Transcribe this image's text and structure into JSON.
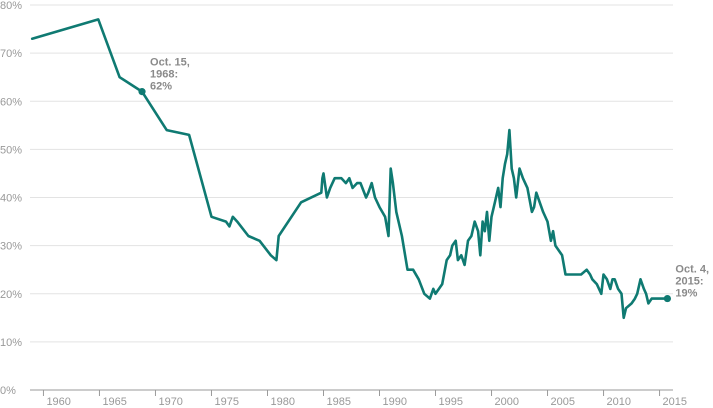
{
  "chart_data": {
    "type": "line",
    "title": "",
    "xlabel": "",
    "ylabel": "",
    "xlim": [
      1958.8,
      2016.2
    ],
    "ylim": [
      0,
      80
    ],
    "grid": true,
    "x_ticks": [
      1960,
      1965,
      1970,
      1975,
      1980,
      1985,
      1990,
      1995,
      2000,
      2005,
      2010,
      2015
    ],
    "x_tick_labels": [
      "1960",
      "1965",
      "1970",
      "1975",
      "1980",
      "1985",
      "1990",
      "1995",
      "2000",
      "2005",
      "2010",
      "2015"
    ],
    "y_ticks": [
      0,
      10,
      20,
      30,
      40,
      50,
      60,
      70,
      80
    ],
    "y_tick_labels": [
      "0%",
      "10%",
      "20%",
      "30%",
      "40%",
      "50%",
      "60%",
      "70%",
      "80%"
    ],
    "line_color": "#0f7a72",
    "series": [
      {
        "x": [
          1959.0,
          1964.9,
          1966.8,
          1968.8,
          1971.0,
          1973.0,
          1975.0,
          1976.3,
          1976.6,
          1976.9,
          1977.3,
          1978.3,
          1979.3,
          1980.3,
          1980.8,
          1981.0,
          1983.0,
          1984.8,
          1984.9,
          1985.0,
          1985.3,
          1985.6,
          1986.0,
          1986.6,
          1987.0,
          1987.3,
          1987.6,
          1988.0,
          1988.3,
          1988.8,
          1989.0,
          1989.3,
          1989.6,
          1990.0,
          1990.5,
          1990.8,
          1991.0,
          1991.2,
          1991.5,
          1992.0,
          1992.5,
          1993.0,
          1993.5,
          1994.0,
          1994.5,
          1994.8,
          1995.0,
          1995.3,
          1995.6,
          1996.0,
          1996.3,
          1996.5,
          1996.8,
          1997.0,
          1997.3,
          1997.6,
          1997.9,
          1998.2,
          1998.5,
          1998.8,
          1999.0,
          1999.2,
          1999.4,
          1999.6,
          1999.8,
          2000.0,
          2000.2,
          2000.4,
          2000.6,
          2000.8,
          2001.0,
          2001.2,
          2001.4,
          2001.6,
          2001.8,
          2002.0,
          2002.2,
          2002.5,
          2002.8,
          2003.2,
          2003.6,
          2003.8,
          2004.0,
          2004.3,
          2004.6,
          2005.0,
          2005.3,
          2005.5,
          2005.7,
          2006.0,
          2006.3,
          2006.6,
          2007.0,
          2007.5,
          2008.0,
          2008.5,
          2008.8,
          2009.0,
          2009.4,
          2009.8,
          2010.0,
          2010.3,
          2010.6,
          2010.8,
          2011.0,
          2011.3,
          2011.6,
          2011.8,
          2012.0,
          2012.5,
          2012.8,
          2013.0,
          2013.3,
          2013.6,
          2013.8,
          2014.0,
          2014.3,
          2014.6,
          2015.0,
          2015.3,
          2015.7
        ],
        "values": [
          73,
          77,
          65,
          62,
          54,
          53,
          36,
          35,
          34,
          36,
          35,
          32,
          31,
          28,
          27,
          32,
          39,
          41,
          44,
          45,
          40,
          42,
          44,
          44,
          43,
          44,
          42,
          43,
          43,
          40,
          41,
          43,
          40,
          38,
          36,
          32,
          46,
          43,
          37,
          32,
          25,
          25,
          23,
          20,
          19,
          21,
          20,
          21,
          22,
          27,
          28,
          30,
          31,
          27,
          28,
          26,
          31,
          32,
          35,
          33,
          28,
          35,
          33,
          37,
          31,
          36,
          38,
          40,
          42,
          38,
          44,
          47,
          49,
          54,
          46,
          44,
          40,
          46,
          44,
          42,
          37,
          38,
          41,
          39,
          37,
          35,
          31,
          33,
          30,
          29,
          28,
          24,
          24,
          24,
          24,
          25,
          24,
          23,
          22,
          20,
          24,
          23,
          21,
          23,
          23,
          21,
          20,
          15,
          17,
          18,
          19,
          20,
          23,
          21,
          20,
          18,
          19,
          19,
          19,
          19,
          19
        ]
      }
    ],
    "annotations": [
      {
        "x": 1968.8,
        "y": 62,
        "lines": [
          "Oct. 15,",
          "1968:",
          "62%"
        ]
      },
      {
        "x": 2015.7,
        "y": 19,
        "lines": [
          "Oct. 4,",
          "2015:",
          "19%"
        ]
      }
    ]
  }
}
